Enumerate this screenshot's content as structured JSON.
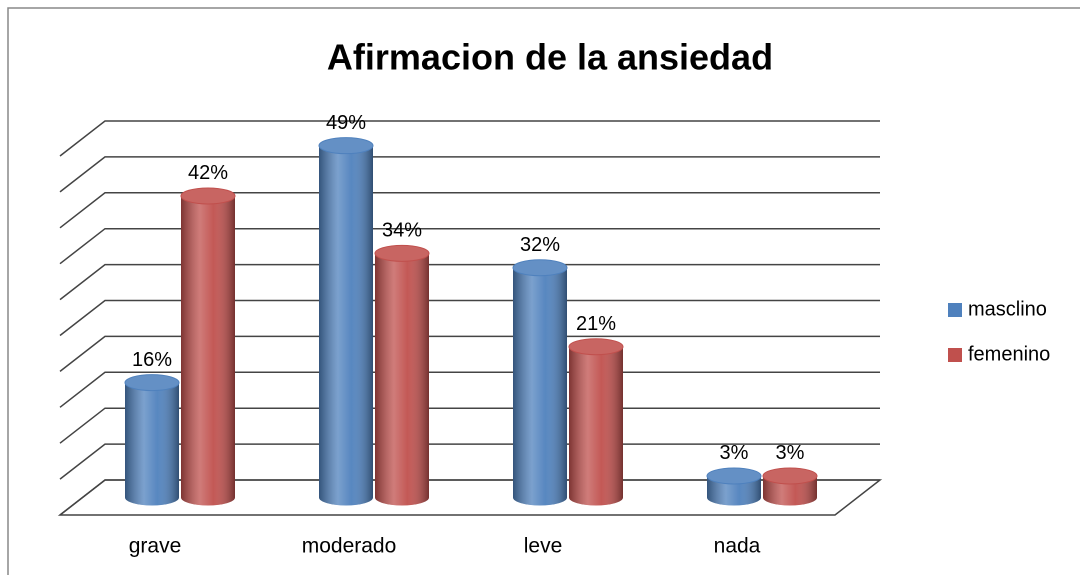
{
  "chart_data": {
    "type": "bar3d",
    "title": "Afirmacion  de la ansiedad",
    "categories": [
      "grave",
      "moderado",
      "leve",
      "nada"
    ],
    "series": [
      {
        "name": "masclino",
        "color": "#4f81bd",
        "values": [
          16,
          49,
          32,
          3
        ],
        "value_labels": [
          "16%",
          "49%",
          "32%",
          "3%"
        ]
      },
      {
        "name": "femenino",
        "color": "#c0504d",
        "values": [
          42,
          34,
          21,
          3
        ],
        "value_labels": [
          "42%",
          "34%",
          "21%",
          "3%"
        ]
      }
    ],
    "ylim": [
      0,
      50
    ],
    "yticks": [
      0,
      5,
      10,
      15,
      20,
      25,
      30,
      35,
      40,
      45,
      50
    ],
    "grid": true,
    "legend": "right"
  }
}
